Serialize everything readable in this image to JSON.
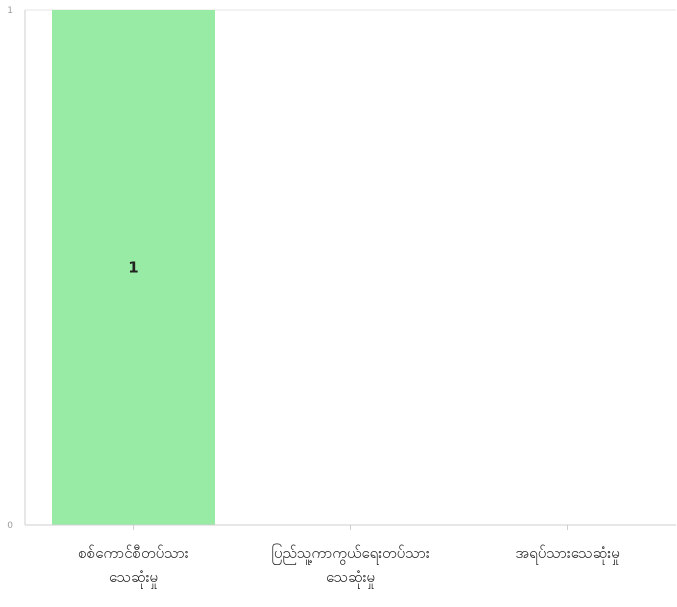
{
  "chart_data": {
    "type": "bar",
    "categories": [
      [
        "စစ်ကောင်စီတပ်သား",
        "သေဆုံးမှု"
      ],
      [
        "ပြည်သူ့ကာကွယ်ရေးတပ်သား",
        "သေဆုံးမှု"
      ],
      [
        "အရပ်သားသေဆုံးမှု"
      ]
    ],
    "values": [
      1,
      0,
      0
    ],
    "data_labels": [
      "1",
      "",
      ""
    ],
    "y_ticks": [
      "0",
      "1"
    ],
    "ylim": [
      0,
      1
    ],
    "grid": true,
    "colors": {
      "bar": "#98eba4",
      "grid": "#e6e6e6",
      "axis": "#cfcfcf"
    }
  }
}
